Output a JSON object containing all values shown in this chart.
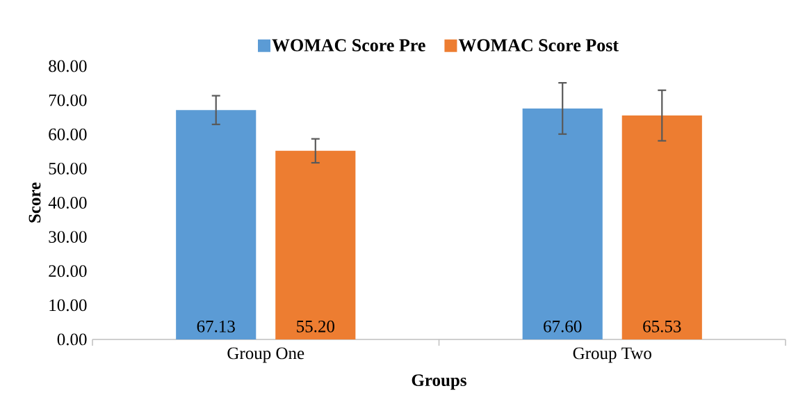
{
  "chart_data": {
    "type": "bar",
    "xlabel": "Groups",
    "ylabel": "Score",
    "categories": [
      "Group One",
      "Group Two"
    ],
    "series": [
      {
        "name": "WOMAC Score Pre",
        "color": "#5b9bd5",
        "values": [
          67.13,
          67.6
        ],
        "errors": [
          4.2,
          7.5
        ],
        "value_labels": [
          "67.13",
          "67.60"
        ]
      },
      {
        "name": "WOMAC Score Post",
        "color": "#ed7d31",
        "values": [
          55.2,
          65.53
        ],
        "errors": [
          3.5,
          7.4
        ],
        "value_labels": [
          "55.20",
          "65.53"
        ]
      }
    ],
    "ylim": [
      0,
      80
    ],
    "yticks": [
      {
        "value": 0,
        "label": "0.00"
      },
      {
        "value": 10,
        "label": "10.00"
      },
      {
        "value": 20,
        "label": "20.00"
      },
      {
        "value": 30,
        "label": "30.00"
      },
      {
        "value": 40,
        "label": "40.00"
      },
      {
        "value": 50,
        "label": "50.00"
      },
      {
        "value": 60,
        "label": "60.00"
      },
      {
        "value": 70,
        "label": "70.00"
      },
      {
        "value": 80,
        "label": "80.00"
      }
    ],
    "legend": "top"
  }
}
